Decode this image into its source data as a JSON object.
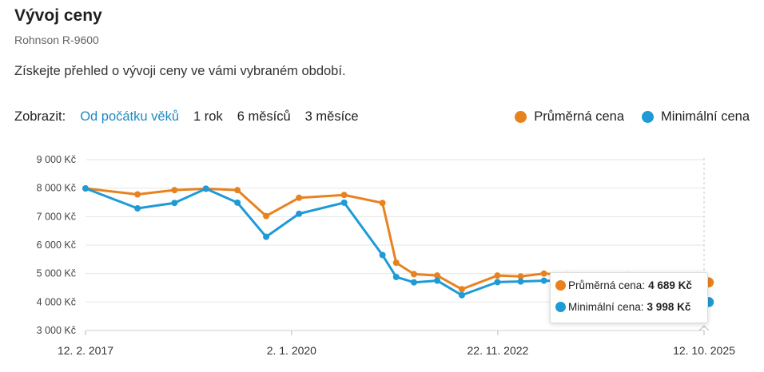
{
  "header": {
    "title": "Vývoj ceny",
    "subtitle": "Rohnson R-9600",
    "intro": "Získejte přehled o vývoji ceny ve vámi vybraném období."
  },
  "filters": {
    "label": "Zobrazit:",
    "options": [
      "Od počátku věků",
      "1 rok",
      "6 měsíců",
      "3 měsíce"
    ],
    "active_index": 0
  },
  "colors": {
    "average": "#e8821f",
    "minimum": "#1e9ad6",
    "active_filter": "#1e8ac4"
  },
  "tooltip": {
    "rows": [
      {
        "label": "Průměrná cena:",
        "value": "4 689 Kč"
      },
      {
        "label": "Minimální cena:",
        "value": "3 998 Kč"
      }
    ]
  },
  "chart_data": {
    "type": "line",
    "legend": {
      "position": "top-right"
    },
    "grid": true,
    "ylim": [
      3000,
      9000
    ],
    "yticks": [
      {
        "value": 3000,
        "label": "3 000 Kč"
      },
      {
        "value": 4000,
        "label": "4 000 Kč"
      },
      {
        "value": 5000,
        "label": "5 000 Kč"
      },
      {
        "value": 6000,
        "label": "6 000 Kč"
      },
      {
        "value": 7000,
        "label": "7 000 Kč"
      },
      {
        "value": 8000,
        "label": "8 000 Kč"
      },
      {
        "value": 9000,
        "label": "9 000 Kč"
      }
    ],
    "xlim": [
      "2017-02-12",
      "2025-10-12"
    ],
    "xticks": [
      {
        "value": "2017-02-12",
        "label": "12. 2. 2017"
      },
      {
        "value": "2020-01-02",
        "label": "2. 1. 2020"
      },
      {
        "value": "2022-11-22",
        "label": "22. 11. 2022"
      },
      {
        "value": "2025-10-12",
        "label": "12. 10. 2025"
      }
    ],
    "x": [
      "2017-02-12",
      "2017-11-05",
      "2018-05-13",
      "2018-10-21",
      "2019-03-31",
      "2019-08-25",
      "2020-02-09",
      "2020-09-27",
      "2021-04-11",
      "2021-06-20",
      "2021-09-19",
      "2022-01-16",
      "2022-05-22",
      "2022-11-20",
      "2023-03-19",
      "2023-07-16",
      "2023-11-12",
      "2024-04-21",
      "2024-09-15",
      "2025-03-09",
      "2025-10-12"
    ],
    "series": [
      {
        "name": "Průměrná cena",
        "color": "#e8821f",
        "values": [
          7990,
          7780,
          7930,
          7980,
          7930,
          7020,
          7660,
          7760,
          7480,
          5380,
          4980,
          4930,
          4450,
          4930,
          4900,
          5000,
          4940,
          4920,
          4940,
          4930,
          4689
        ]
      },
      {
        "name": "Minimální cena",
        "color": "#1e9ad6",
        "values": [
          7990,
          7290,
          7480,
          7980,
          7490,
          6290,
          7100,
          7490,
          5650,
          4880,
          4690,
          4750,
          4240,
          4700,
          4720,
          4750,
          4730,
          4700,
          4720,
          4700,
          3998
        ]
      }
    ]
  }
}
